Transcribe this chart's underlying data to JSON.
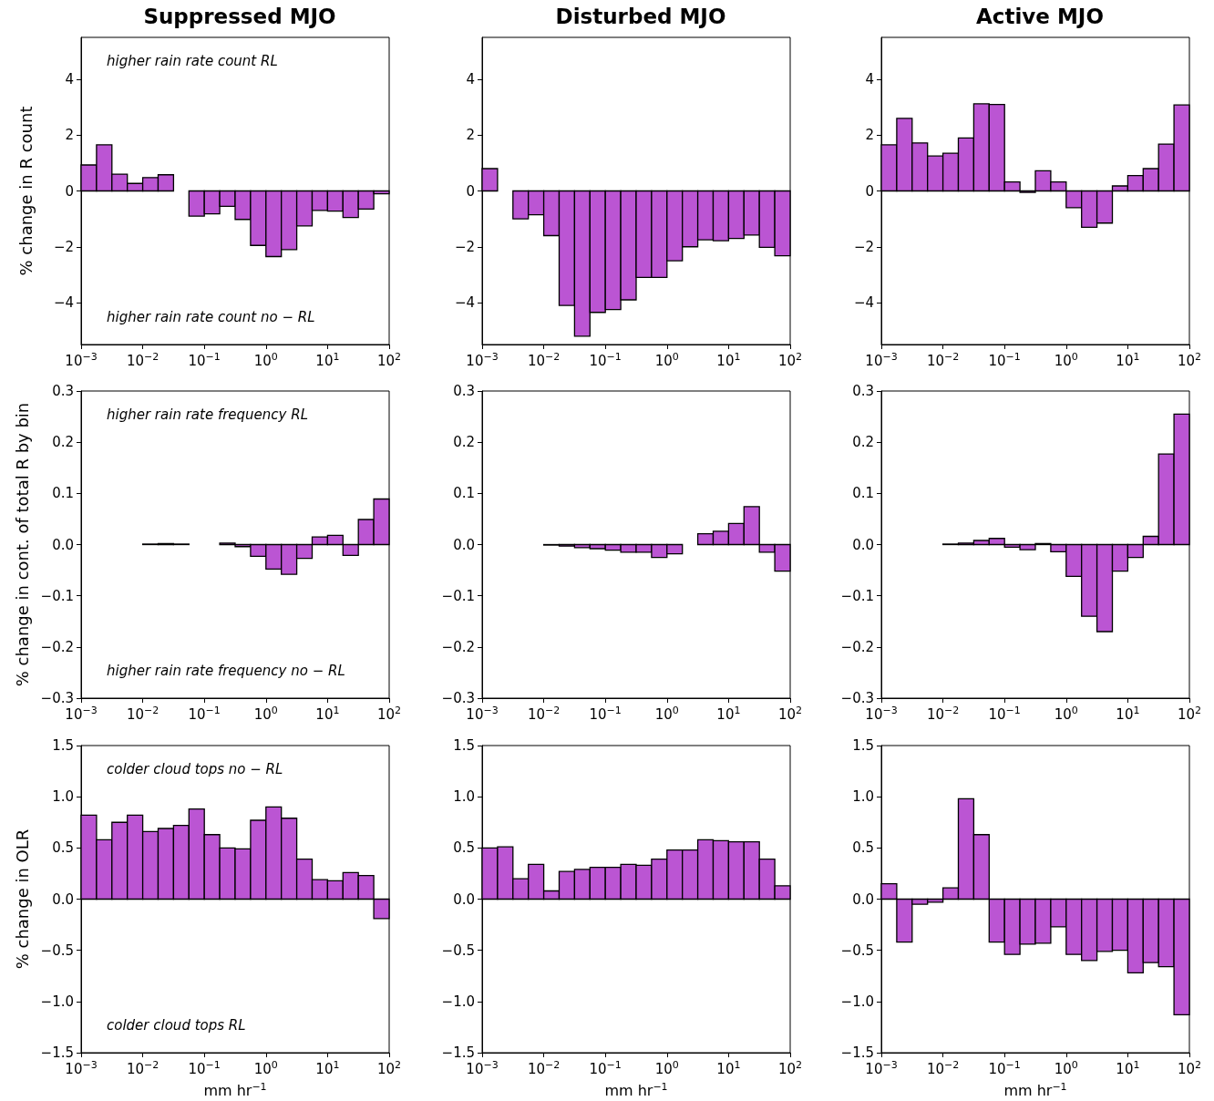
{
  "chart_data": [
    {
      "type": "histogram",
      "title": "Suppressed MJO",
      "ylabel": "% change in R count",
      "annotations": [
        "higher rain rate count RL",
        "higher rain rate count no − RL"
      ],
      "bins": [
        0.001,
        0.001778,
        0.003162,
        0.005623,
        0.01,
        0.01778,
        0.03162,
        0.05623,
        0.1,
        0.1778,
        0.3162,
        0.5623,
        1,
        1.778,
        3.162,
        5.623,
        10,
        17.78,
        31.62,
        56.23,
        100
      ],
      "values": [
        0.93,
        1.65,
        0.6,
        0.27,
        0.48,
        0.58,
        0,
        -0.9,
        -0.82,
        -0.55,
        -1.02,
        -1.95,
        -2.35,
        -2.1,
        -1.25,
        -0.7,
        -0.72,
        -0.95,
        -0.65,
        -0.1
      ],
      "color": "#bb55d3",
      "xlim": [
        0.001,
        100
      ],
      "xticks": [
        {
          "value": 0.001,
          "label": "10$^{−3}$"
        },
        {
          "value": 0.01,
          "label": "10$^{−2}$"
        },
        {
          "value": 0.1,
          "label": "10$^{−1}$"
        },
        {
          "value": 1,
          "label": "10$^{0}$"
        },
        {
          "value": 10,
          "label": "10$^{1}$"
        },
        {
          "value": 100,
          "label": "10$^{2}$"
        }
      ],
      "log": "x",
      "ylim": [
        -5.5,
        5.5
      ],
      "yticks": [
        {
          "value": -4,
          "label": "−4"
        },
        {
          "value": -2,
          "label": "−2"
        },
        0,
        2,
        4
      ]
    },
    {
      "type": "histogram",
      "title": "Disturbed MJO",
      "bins": [
        0.001,
        0.001778,
        0.003162,
        0.005623,
        0.01,
        0.01778,
        0.03162,
        0.05623,
        0.1,
        0.1778,
        0.3162,
        0.5623,
        1,
        1.778,
        3.162,
        5.623,
        10,
        17.78,
        31.62,
        56.23,
        100
      ],
      "values": [
        0.8,
        0,
        -1.0,
        -0.85,
        -1.6,
        -4.1,
        -5.2,
        -4.35,
        -4.25,
        -3.9,
        -3.1,
        -3.1,
        -2.5,
        -2.0,
        -1.75,
        -1.78,
        -1.7,
        -1.58,
        -2.02,
        -2.32
      ],
      "color": "#bb55d3",
      "xlim": [
        0.001,
        100
      ],
      "xticks": [
        {
          "value": 0.001,
          "label": "10$^{−3}$"
        },
        {
          "value": 0.01,
          "label": "10$^{−2}$"
        },
        {
          "value": 0.1,
          "label": "10$^{−1}$"
        },
        {
          "value": 1,
          "label": "10$^{0}$"
        },
        {
          "value": 10,
          "label": "10$^{1}$"
        },
        {
          "value": 100,
          "label": "10$^{2}$"
        }
      ],
      "log": "x",
      "ylim": [
        -5.5,
        5.5
      ],
      "yticks": [
        {
          "value": -4,
          "label": "−4"
        },
        {
          "value": -2,
          "label": "−2"
        },
        0,
        2,
        4
      ]
    },
    {
      "type": "histogram",
      "title": "Active MJO",
      "bins": [
        0.001,
        0.001778,
        0.003162,
        0.005623,
        0.01,
        0.01778,
        0.03162,
        0.05623,
        0.1,
        0.1778,
        0.3162,
        0.5623,
        1,
        1.778,
        3.162,
        5.623,
        10,
        17.78,
        31.62,
        56.23,
        100
      ],
      "values": [
        1.65,
        2.6,
        1.72,
        1.25,
        1.35,
        1.9,
        3.12,
        3.1,
        0.32,
        -0.05,
        0.72,
        0.32,
        -0.6,
        -1.3,
        -1.15,
        0.18,
        0.55,
        0.8,
        1.68,
        3.08
      ],
      "color": "#bb55d3",
      "xlim": [
        0.001,
        100
      ],
      "xticks": [
        {
          "value": 0.001,
          "label": "10$^{−3}$"
        },
        {
          "value": 0.01,
          "label": "10$^{−2}$"
        },
        {
          "value": 0.1,
          "label": "10$^{−1}$"
        },
        {
          "value": 1,
          "label": "10$^{0}$"
        },
        {
          "value": 10,
          "label": "10$^{1}$"
        },
        {
          "value": 100,
          "label": "10$^{2}$"
        }
      ],
      "log": "x",
      "ylim": [
        -5.5,
        5.5
      ],
      "yticks": [
        {
          "value": -4,
          "label": "−4"
        },
        {
          "value": -2,
          "label": "−2"
        },
        0,
        2,
        4
      ]
    },
    {
      "type": "histogram",
      "ylabel": "% change in cont. of total R by bin",
      "annotations": [
        "higher rain rate frequency RL",
        "higher rain rate frequency no − RL"
      ],
      "bins": [
        0.001,
        0.001778,
        0.003162,
        0.005623,
        0.01,
        0.01778,
        0.03162,
        0.05623,
        0.1,
        0.1778,
        0.3162,
        0.5623,
        1,
        1.778,
        3.162,
        5.623,
        10,
        17.78,
        31.62,
        56.23,
        100
      ],
      "values": [
        0,
        0,
        0,
        0,
        0.001,
        0.002,
        0.001,
        0,
        0,
        0.003,
        -0.004,
        -0.023,
        -0.048,
        -0.058,
        -0.027,
        0.015,
        0.018,
        -0.021,
        0.049,
        0.089
      ],
      "color": "#bb55d3",
      "xlim": [
        0.001,
        100
      ],
      "xticks": [
        {
          "value": 0.001,
          "label": "10$^{−3}$"
        },
        {
          "value": 0.01,
          "label": "10$^{−2}$"
        },
        {
          "value": 0.1,
          "label": "10$^{−1}$"
        },
        {
          "value": 1,
          "label": "10$^{0}$"
        },
        {
          "value": 10,
          "label": "10$^{1}$"
        },
        {
          "value": 100,
          "label": "10$^{2}$"
        }
      ],
      "log": "x",
      "ylim": [
        -0.3,
        0.3
      ],
      "yticks": [
        {
          "value": -0.3,
          "label": "−0.3"
        },
        {
          "value": -0.2,
          "label": "−0.2"
        },
        {
          "value": -0.1,
          "label": "−0.1"
        },
        {
          "value": 0,
          "label": "0.0"
        },
        0.1,
        0.2,
        0.3
      ]
    },
    {
      "type": "histogram",
      "bins": [
        0.001,
        0.001778,
        0.003162,
        0.005623,
        0.01,
        0.01778,
        0.03162,
        0.05623,
        0.1,
        0.1778,
        0.3162,
        0.5623,
        1,
        1.778,
        3.162,
        5.623,
        10,
        17.78,
        31.62,
        56.23,
        100
      ],
      "values": [
        0,
        0,
        0,
        0,
        -0.001,
        -0.003,
        -0.006,
        -0.008,
        -0.011,
        -0.015,
        -0.015,
        -0.025,
        -0.018,
        0,
        0.021,
        0.026,
        0.041,
        0.074,
        -0.015,
        -0.052
      ],
      "color": "#bb55d3",
      "xlim": [
        0.001,
        100
      ],
      "xticks": [
        {
          "value": 0.001,
          "label": "10$^{−3}$"
        },
        {
          "value": 0.01,
          "label": "10$^{−2}$"
        },
        {
          "value": 0.1,
          "label": "10$^{−1}$"
        },
        {
          "value": 1,
          "label": "10$^{0}$"
        },
        {
          "value": 10,
          "label": "10$^{1}$"
        },
        {
          "value": 100,
          "label": "10$^{2}$"
        }
      ],
      "log": "x",
      "ylim": [
        -0.3,
        0.3
      ],
      "yticks": [
        {
          "value": -0.3,
          "label": "−0.3"
        },
        {
          "value": -0.2,
          "label": "−0.2"
        },
        {
          "value": -0.1,
          "label": "−0.1"
        },
        {
          "value": 0,
          "label": "0.0"
        },
        0.1,
        0.2,
        0.3
      ]
    },
    {
      "type": "histogram",
      "bins": [
        0.001,
        0.001778,
        0.003162,
        0.005623,
        0.01,
        0.01778,
        0.03162,
        0.05623,
        0.1,
        0.1778,
        0.3162,
        0.5623,
        1,
        1.778,
        3.162,
        5.623,
        10,
        17.78,
        31.62,
        56.23,
        100
      ],
      "values": [
        0,
        0,
        0,
        0,
        0.001,
        0.003,
        0.008,
        0.012,
        -0.005,
        -0.01,
        0.002,
        -0.014,
        -0.062,
        -0.14,
        -0.17,
        -0.052,
        -0.025,
        0.016,
        0.177,
        0.255
      ],
      "color": "#bb55d3",
      "xlim": [
        0.001,
        100
      ],
      "xticks": [
        {
          "value": 0.001,
          "label": "10$^{−3}$"
        },
        {
          "value": 0.01,
          "label": "10$^{−2}$"
        },
        {
          "value": 0.1,
          "label": "10$^{−1}$"
        },
        {
          "value": 1,
          "label": "10$^{0}$"
        },
        {
          "value": 10,
          "label": "10$^{1}$"
        },
        {
          "value": 100,
          "label": "10$^{2}$"
        }
      ],
      "log": "x",
      "ylim": [
        -0.3,
        0.3
      ],
      "yticks": [
        {
          "value": -0.3,
          "label": "−0.3"
        },
        {
          "value": -0.2,
          "label": "−0.2"
        },
        {
          "value": -0.1,
          "label": "−0.1"
        },
        {
          "value": 0,
          "label": "0.0"
        },
        0.1,
        0.2,
        0.3
      ]
    },
    {
      "type": "histogram",
      "ylabel": "% change in OLR",
      "xlabel": "mm hr$^{−1}$",
      "annotations": [
        "colder cloud tops no − RL",
        "colder cloud tops RL"
      ],
      "bins": [
        0.001,
        0.001778,
        0.003162,
        0.005623,
        0.01,
        0.01778,
        0.03162,
        0.05623,
        0.1,
        0.1778,
        0.3162,
        0.5623,
        1,
        1.778,
        3.162,
        5.623,
        10,
        17.78,
        31.62,
        56.23,
        100
      ],
      "values": [
        0.82,
        0.58,
        0.75,
        0.82,
        0.66,
        0.69,
        0.72,
        0.88,
        0.63,
        0.5,
        0.49,
        0.77,
        0.9,
        0.79,
        0.39,
        0.19,
        0.18,
        0.26,
        0.23,
        -0.19
      ],
      "color": "#bb55d3",
      "xlim": [
        0.001,
        100
      ],
      "xticks": [
        {
          "value": 0.001,
          "label": "10$^{−3}$"
        },
        {
          "value": 0.01,
          "label": "10$^{−2}$"
        },
        {
          "value": 0.1,
          "label": "10$^{−1}$"
        },
        {
          "value": 1,
          "label": "10$^{0}$"
        },
        {
          "value": 10,
          "label": "10$^{1}$"
        },
        {
          "value": 100,
          "label": "10$^{2}$"
        }
      ],
      "log": "x",
      "ylim": [
        -1.5,
        1.5
      ],
      "yticks": [
        {
          "value": -1.5,
          "label": "−1.5"
        },
        {
          "value": -1,
          "label": "−1.0"
        },
        {
          "value": -0.5,
          "label": "−0.5"
        },
        {
          "value": 0,
          "label": "0.0"
        },
        {
          "value": 0.5,
          "label": "0.5"
        },
        {
          "value": 1,
          "label": "1.0"
        },
        {
          "value": 1.5,
          "label": "1.5"
        }
      ]
    },
    {
      "type": "histogram",
      "xlabel": "mm hr$^{−1}$",
      "bins": [
        0.001,
        0.001778,
        0.003162,
        0.005623,
        0.01,
        0.01778,
        0.03162,
        0.05623,
        0.1,
        0.1778,
        0.3162,
        0.5623,
        1,
        1.778,
        3.162,
        5.623,
        10,
        17.78,
        31.62,
        56.23,
        100
      ],
      "values": [
        0.5,
        0.51,
        0.2,
        0.34,
        0.08,
        0.27,
        0.29,
        0.31,
        0.31,
        0.34,
        0.33,
        0.39,
        0.48,
        0.48,
        0.58,
        0.57,
        0.56,
        0.56,
        0.39,
        0.13
      ],
      "color": "#bb55d3",
      "xlim": [
        0.001,
        100
      ],
      "xticks": [
        {
          "value": 0.001,
          "label": "10$^{−3}$"
        },
        {
          "value": 0.01,
          "label": "10$^{−2}$"
        },
        {
          "value": 0.1,
          "label": "10$^{−1}$"
        },
        {
          "value": 1,
          "label": "10$^{0}$"
        },
        {
          "value": 10,
          "label": "10$^{1}$"
        },
        {
          "value": 100,
          "label": "10$^{2}$"
        }
      ],
      "log": "x",
      "ylim": [
        -1.5,
        1.5
      ],
      "yticks": [
        {
          "value": -1.5,
          "label": "−1.5"
        },
        {
          "value": -1,
          "label": "−1.0"
        },
        {
          "value": -0.5,
          "label": "−0.5"
        },
        {
          "value": 0,
          "label": "0.0"
        },
        {
          "value": 0.5,
          "label": "0.5"
        },
        {
          "value": 1,
          "label": "1.0"
        },
        {
          "value": 1.5,
          "label": "1.5"
        }
      ]
    },
    {
      "type": "histogram",
      "xlabel": "mm hr$^{−1}$",
      "bins": [
        0.001,
        0.001778,
        0.003162,
        0.005623,
        0.01,
        0.01778,
        0.03162,
        0.05623,
        0.1,
        0.1778,
        0.3162,
        0.5623,
        1,
        1.778,
        3.162,
        5.623,
        10,
        17.78,
        31.62,
        56.23,
        100
      ],
      "values": [
        0.15,
        -0.42,
        -0.05,
        -0.03,
        0.11,
        0.98,
        0.63,
        -0.42,
        -0.54,
        -0.44,
        -0.43,
        -0.27,
        -0.54,
        -0.6,
        -0.51,
        -0.5,
        -0.72,
        -0.62,
        -0.66,
        -1.13
      ],
      "color": "#bb55d3",
      "xlim": [
        0.001,
        100
      ],
      "xticks": [
        {
          "value": 0.001,
          "label": "10$^{−3}$"
        },
        {
          "value": 0.01,
          "label": "10$^{−2}$"
        },
        {
          "value": 0.1,
          "label": "10$^{−1}$"
        },
        {
          "value": 1,
          "label": "10$^{0}$"
        },
        {
          "value": 10,
          "label": "10$^{1}$"
        },
        {
          "value": 100,
          "label": "10$^{2}$"
        }
      ],
      "log": "x",
      "ylim": [
        -1.5,
        1.5
      ],
      "yticks": [
        {
          "value": -1.5,
          "label": "−1.5"
        },
        {
          "value": -1,
          "label": "−1.0"
        },
        {
          "value": -0.5,
          "label": "−0.5"
        },
        {
          "value": 0,
          "label": "0.0"
        },
        {
          "value": 0.5,
          "label": "0.5"
        },
        {
          "value": 1,
          "label": "1.0"
        },
        {
          "value": 1.5,
          "label": "1.5"
        }
      ]
    }
  ]
}
